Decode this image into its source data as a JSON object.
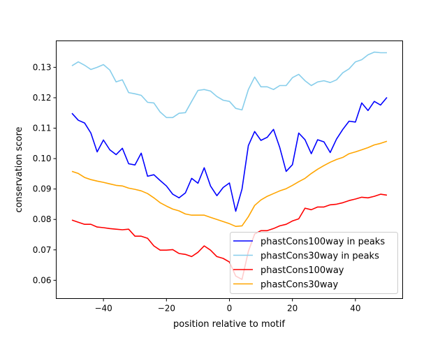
{
  "chart_data": {
    "type": "line",
    "title": "",
    "xlabel": "position relative to motif",
    "ylabel": "conservation score",
    "xlim": [
      -55,
      55
    ],
    "ylim": [
      0.054,
      0.1387
    ],
    "xticks": [
      -40,
      -20,
      0,
      20,
      40
    ],
    "yticks": [
      0.06,
      0.07,
      0.08,
      0.09,
      0.1,
      0.11,
      0.12,
      0.13
    ],
    "ytick_labels": [
      "0.06",
      "0.07",
      "0.08",
      "0.09",
      "0.10",
      "0.11",
      "0.12",
      "0.13"
    ],
    "grid": false,
    "legend_position": "lower-right",
    "x": [
      -50,
      -48,
      -46,
      -44,
      -42,
      -40,
      -38,
      -36,
      -34,
      -32,
      -30,
      -28,
      -26,
      -24,
      -22,
      -20,
      -18,
      -16,
      -14,
      -12,
      -10,
      -8,
      -6,
      -4,
      -2,
      0,
      2,
      4,
      6,
      8,
      10,
      12,
      14,
      16,
      18,
      20,
      22,
      24,
      26,
      28,
      30,
      32,
      34,
      36,
      38,
      40,
      42,
      44,
      46,
      48,
      50
    ],
    "series": [
      {
        "name": "phastCons100way in peaks",
        "color": "#0000ff",
        "values": [
          0.1149,
          0.1126,
          0.1117,
          0.1084,
          0.1022,
          0.1061,
          0.1029,
          0.1013,
          0.1034,
          0.0983,
          0.0979,
          0.1018,
          0.0942,
          0.0947,
          0.0928,
          0.091,
          0.0883,
          0.0871,
          0.0887,
          0.0935,
          0.0919,
          0.097,
          0.091,
          0.0878,
          0.0905,
          0.092,
          0.0827,
          0.09,
          0.1043,
          0.1089,
          0.106,
          0.107,
          0.1096,
          0.1036,
          0.0958,
          0.098,
          0.1084,
          0.1062,
          0.1016,
          0.1062,
          0.1055,
          0.102,
          0.1064,
          0.1096,
          0.1123,
          0.112,
          0.1183,
          0.1158,
          0.1188,
          0.1176,
          0.1201
        ]
      },
      {
        "name": "phastCons30way in peaks",
        "color": "#87ceeb",
        "values": [
          0.1305,
          0.1318,
          0.1307,
          0.1293,
          0.13,
          0.1309,
          0.1291,
          0.1252,
          0.1259,
          0.1217,
          0.1213,
          0.1208,
          0.1185,
          0.1183,
          0.1153,
          0.1135,
          0.1135,
          0.1149,
          0.1151,
          0.1188,
          0.1224,
          0.1227,
          0.1222,
          0.1204,
          0.1192,
          0.1188,
          0.1165,
          0.116,
          0.1227,
          0.1268,
          0.1236,
          0.1236,
          0.1227,
          0.124,
          0.124,
          0.1266,
          0.1277,
          0.1256,
          0.124,
          0.1252,
          0.1256,
          0.125,
          0.1259,
          0.1282,
          0.1295,
          0.1318,
          0.1325,
          0.1341,
          0.135,
          0.1348,
          0.1348
        ]
      },
      {
        "name": "phastCons100way",
        "color": "#ff0000",
        "values": [
          0.0798,
          0.0791,
          0.0784,
          0.0784,
          0.0775,
          0.0773,
          0.077,
          0.0768,
          0.0766,
          0.0768,
          0.0745,
          0.0745,
          0.0738,
          0.0713,
          0.0699,
          0.0699,
          0.0701,
          0.0688,
          0.0685,
          0.0678,
          0.0692,
          0.0713,
          0.0699,
          0.0678,
          0.0672,
          0.066,
          0.0614,
          0.0603,
          0.0695,
          0.0752,
          0.0763,
          0.0763,
          0.077,
          0.0779,
          0.0784,
          0.0795,
          0.0802,
          0.0837,
          0.0832,
          0.0841,
          0.0841,
          0.0848,
          0.085,
          0.0855,
          0.0862,
          0.0867,
          0.0873,
          0.0871,
          0.0876,
          0.0883,
          0.088
        ]
      },
      {
        "name": "phastCons30way",
        "color": "#ffa500",
        "values": [
          0.0958,
          0.0951,
          0.0938,
          0.0931,
          0.0926,
          0.0922,
          0.0917,
          0.0912,
          0.091,
          0.0903,
          0.0899,
          0.0894,
          0.0885,
          0.0871,
          0.0855,
          0.0844,
          0.0834,
          0.0828,
          0.0818,
          0.0814,
          0.0814,
          0.0814,
          0.0807,
          0.08,
          0.0793,
          0.0786,
          0.0777,
          0.0779,
          0.0809,
          0.0846,
          0.0864,
          0.0876,
          0.0885,
          0.0894,
          0.0901,
          0.0912,
          0.0924,
          0.0935,
          0.0951,
          0.0965,
          0.0977,
          0.0988,
          0.0997,
          0.1004,
          0.1016,
          0.1022,
          0.1029,
          0.1036,
          0.1045,
          0.105,
          0.1057
        ]
      }
    ]
  }
}
